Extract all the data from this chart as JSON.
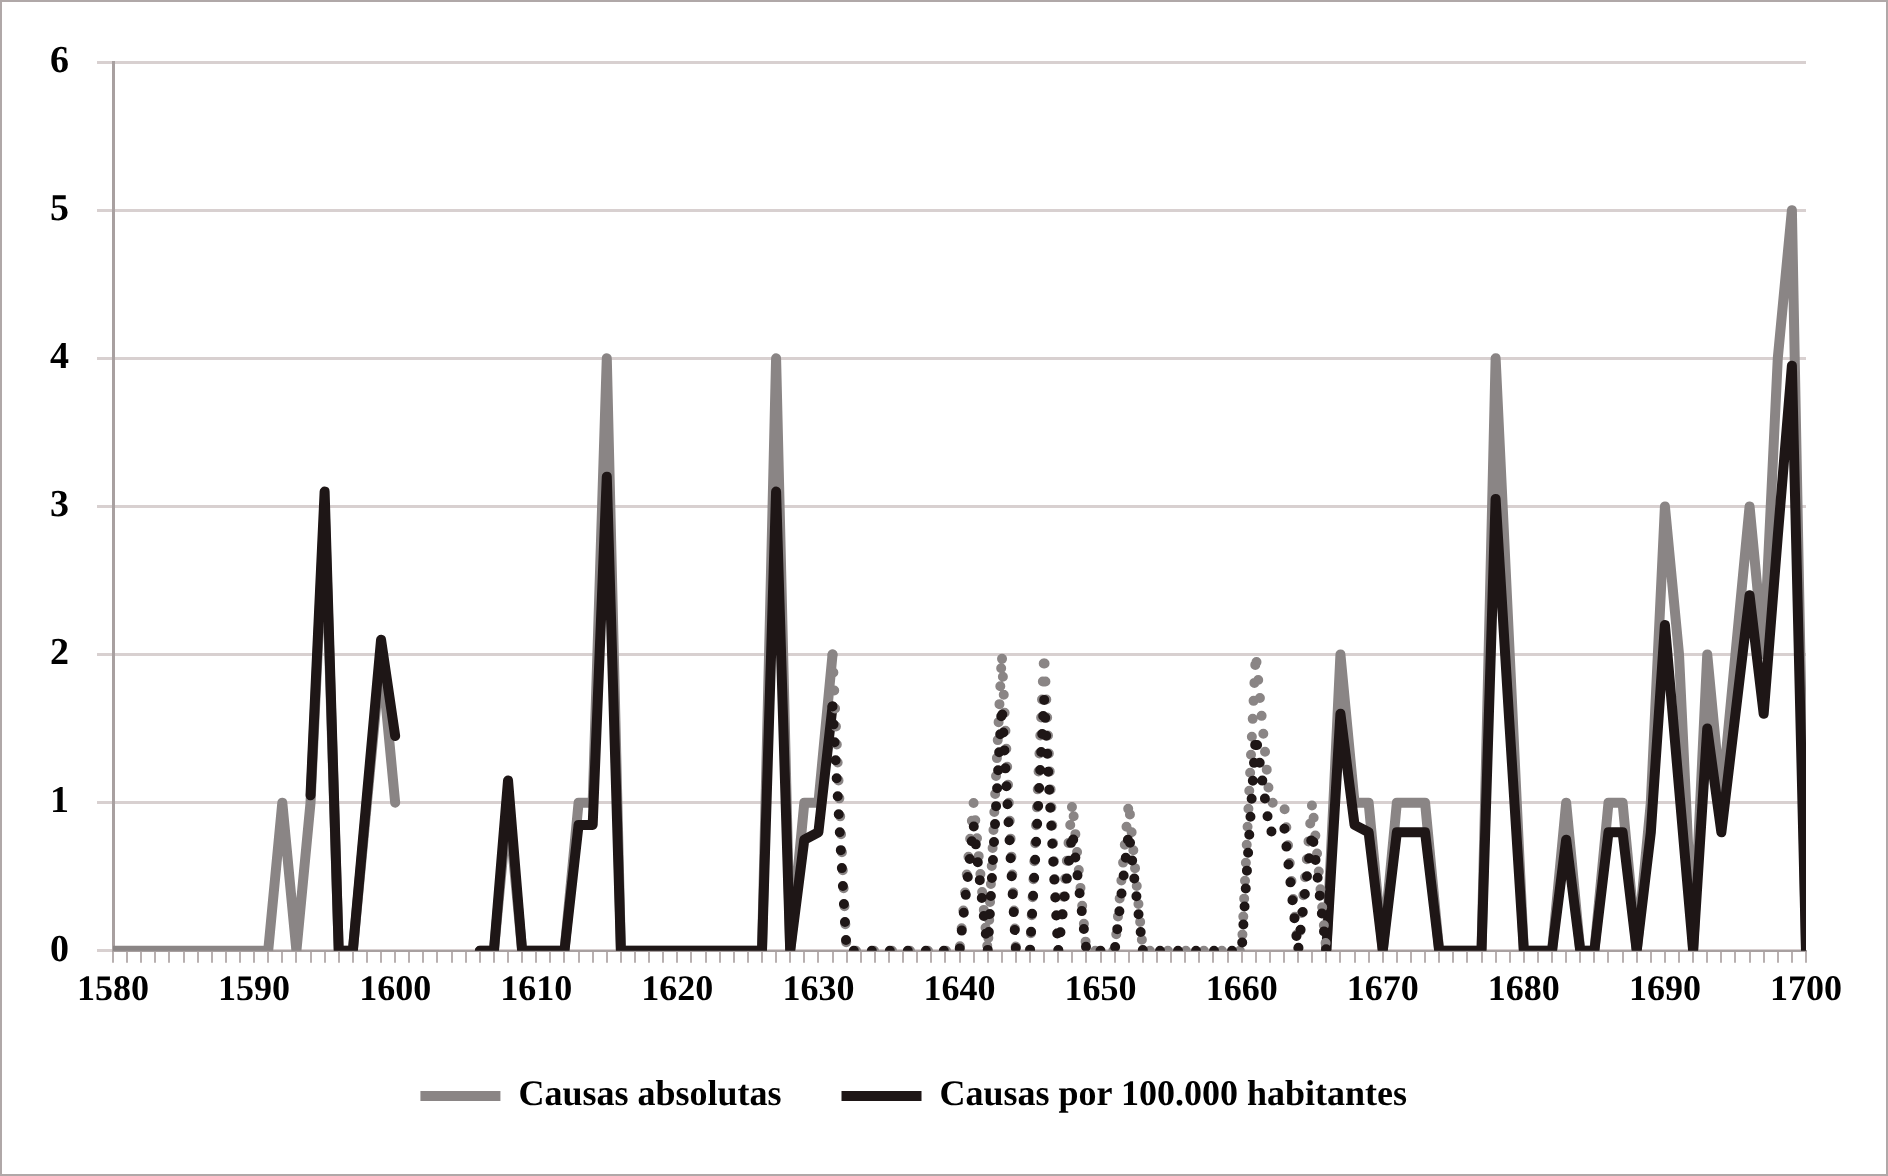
{
  "chart_data": {
    "type": "line",
    "series": [
      {
        "name": "Causas absolutas",
        "color": "#8a8585",
        "x": [
          1580,
          1581,
          1582,
          1583,
          1584,
          1585,
          1586,
          1587,
          1588,
          1589,
          1590,
          1591,
          1592,
          1593,
          1594,
          1595,
          1596,
          1597,
          1598,
          1599,
          1600,
          1601,
          1606,
          1607,
          1608,
          1609,
          1610,
          1611,
          1612,
          1613,
          1614,
          1615,
          1616,
          1617,
          1618,
          1619,
          1620,
          1621,
          1622,
          1623,
          1624,
          1625,
          1626,
          1627,
          1628,
          1629,
          1630,
          1631,
          1632,
          1666,
          1667,
          1668,
          1669,
          1670,
          1671,
          1672,
          1673,
          1674,
          1675,
          1676,
          1677,
          1678,
          1679,
          1680,
          1681,
          1682,
          1683,
          1684,
          1685,
          1686,
          1687,
          1688,
          1689,
          1690,
          1691,
          1692,
          1693,
          1694,
          1695,
          1696,
          1697,
          1698,
          1699,
          1700
        ],
        "values": [
          0,
          0,
          0,
          0,
          0,
          0,
          0,
          0,
          0,
          0,
          0,
          0,
          1,
          0,
          1,
          3,
          0,
          0,
          1,
          2,
          1,
          null,
          0,
          0,
          1,
          0,
          0,
          0,
          0,
          1,
          1,
          4,
          0,
          0,
          0,
          0,
          0,
          0,
          0,
          0,
          0,
          0,
          0,
          4,
          0,
          1,
          1,
          2,
          null,
          0,
          2,
          1,
          1,
          0,
          1,
          1,
          1,
          0,
          0,
          0,
          0,
          4,
          2,
          0,
          0,
          0,
          1,
          0,
          0,
          1,
          1,
          0,
          1,
          3,
          2,
          0,
          2,
          1,
          2,
          3,
          2,
          4,
          5,
          0
        ]
      },
      {
        "name": "Causas por 100.000 habitantes",
        "color": "#1e1616",
        "x": [
          1594,
          1595,
          1596,
          1597,
          1598,
          1599,
          1600,
          1601,
          1606,
          1607,
          1608,
          1609,
          1610,
          1611,
          1612,
          1613,
          1614,
          1615,
          1616,
          1617,
          1618,
          1619,
          1620,
          1621,
          1622,
          1623,
          1624,
          1625,
          1626,
          1627,
          1628,
          1629,
          1630,
          1631,
          1632,
          1666,
          1667,
          1668,
          1669,
          1670,
          1671,
          1672,
          1673,
          1674,
          1675,
          1676,
          1677,
          1678,
          1679,
          1680,
          1681,
          1682,
          1683,
          1684,
          1685,
          1686,
          1687,
          1688,
          1689,
          1690,
          1691,
          1692,
          1693,
          1694,
          1695,
          1696,
          1697,
          1698,
          1699,
          1700
        ],
        "values": [
          1.05,
          3.1,
          0,
          0,
          1.05,
          2.1,
          1.45,
          null,
          0,
          0,
          1.15,
          0,
          0,
          0,
          0,
          0.85,
          0.85,
          3.2,
          0,
          0,
          0,
          0,
          0,
          0,
          0,
          0,
          0,
          0,
          0,
          3.1,
          0,
          0.75,
          0.8,
          1.65,
          null,
          0,
          1.6,
          0.85,
          0.8,
          0,
          0.8,
          0.8,
          0.8,
          0,
          0,
          0,
          0,
          3.05,
          1.5,
          0,
          0,
          0,
          0.75,
          0,
          0,
          0.8,
          0.8,
          0,
          0.8,
          2.2,
          1.1,
          0,
          1.5,
          0.8,
          1.6,
          2.4,
          1.6,
          2.8,
          3.95,
          0
        ]
      },
      {
        "color": "#8a8585",
        "line_style": "dotted",
        "x": [
          1631,
          1632,
          1633,
          1634,
          1635,
          1636,
          1637,
          1638,
          1639,
          1640,
          1641,
          1642,
          1643,
          1644,
          1645,
          1646,
          1647,
          1648,
          1649,
          1650,
          1651,
          1652,
          1653,
          1654,
          1655,
          1656,
          1657,
          1658,
          1659,
          1660,
          1661,
          1662,
          1663,
          1664,
          1665,
          1666
        ],
        "values": [
          2,
          0,
          0,
          0,
          0,
          0,
          0,
          0,
          0,
          0,
          1,
          0,
          2,
          0,
          0,
          2,
          0,
          1,
          0,
          0,
          0,
          1,
          0,
          0,
          0,
          0,
          0,
          0,
          0,
          0,
          2,
          1,
          1,
          0,
          1,
          0
        ]
      },
      {
        "color": "#1e1616",
        "line_style": "dotted",
        "x": [
          1631,
          1632,
          1633,
          1634,
          1635,
          1636,
          1637,
          1638,
          1639,
          1640,
          1641,
          1642,
          1643,
          1644,
          1645,
          1646,
          1647,
          1648,
          1649,
          1650,
          1651,
          1652,
          1653,
          1654,
          1655,
          1656,
          1657,
          1658,
          1659,
          1660,
          1661,
          1662,
          1663,
          1664,
          1665,
          1666
        ],
        "values": [
          1.65,
          0,
          0,
          0,
          0,
          0,
          0,
          0,
          0,
          0,
          0.85,
          0,
          1.65,
          0,
          0,
          1.7,
          0,
          0.8,
          0,
          0,
          0,
          0.8,
          0,
          0,
          0,
          0,
          0,
          0,
          0,
          0,
          1.45,
          0.8,
          0.85,
          0,
          0.8,
          0
        ]
      }
    ],
    "xlim": [
      1580,
      1700
    ],
    "xticks": [
      1580,
      {
        "value": 1581,
        "label": null
      },
      {
        "value": 1582,
        "label": null
      },
      {
        "value": 1583,
        "label": null
      },
      {
        "value": 1584,
        "label": null
      },
      {
        "value": 1585,
        "label": null
      },
      {
        "value": 1586,
        "label": null
      },
      {
        "value": 1587,
        "label": null
      },
      {
        "value": 1588,
        "label": null
      },
      {
        "value": 1589,
        "label": null
      },
      1590,
      {
        "value": 1591,
        "label": null
      },
      {
        "value": 1592,
        "label": null
      },
      {
        "value": 1593,
        "label": null
      },
      {
        "value": 1594,
        "label": null
      },
      {
        "value": 1595,
        "label": null
      },
      {
        "value": 1596,
        "label": null
      },
      {
        "value": 1597,
        "label": null
      },
      {
        "value": 1598,
        "label": null
      },
      {
        "value": 1599,
        "label": null
      },
      1600,
      {
        "value": 1601,
        "label": null
      },
      {
        "value": 1602,
        "label": null
      },
      {
        "value": 1603,
        "label": null
      },
      {
        "value": 1604,
        "label": null
      },
      {
        "value": 1605,
        "label": null
      },
      {
        "value": 1606,
        "label": null
      },
      {
        "value": 1607,
        "label": null
      },
      {
        "value": 1608,
        "label": null
      },
      {
        "value": 1609,
        "label": null
      },
      1610,
      {
        "value": 1611,
        "label": null
      },
      {
        "value": 1612,
        "label": null
      },
      {
        "value": 1613,
        "label": null
      },
      {
        "value": 1614,
        "label": null
      },
      {
        "value": 1615,
        "label": null
      },
      {
        "value": 1616,
        "label": null
      },
      {
        "value": 1617,
        "label": null
      },
      {
        "value": 1618,
        "label": null
      },
      {
        "value": 1619,
        "label": null
      },
      1620,
      {
        "value": 1621,
        "label": null
      },
      {
        "value": 1622,
        "label": null
      },
      {
        "value": 1623,
        "label": null
      },
      {
        "value": 1624,
        "label": null
      },
      {
        "value": 1625,
        "label": null
      },
      {
        "value": 1626,
        "label": null
      },
      {
        "value": 1627,
        "label": null
      },
      {
        "value": 1628,
        "label": null
      },
      {
        "value": 1629,
        "label": null
      },
      1630,
      {
        "value": 1631,
        "label": null
      },
      {
        "value": 1632,
        "label": null
      },
      {
        "value": 1633,
        "label": null
      },
      {
        "value": 1634,
        "label": null
      },
      {
        "value": 1635,
        "label": null
      },
      {
        "value": 1636,
        "label": null
      },
      {
        "value": 1637,
        "label": null
      },
      {
        "value": 1638,
        "label": null
      },
      {
        "value": 1639,
        "label": null
      },
      1640,
      {
        "value": 1641,
        "label": null
      },
      {
        "value": 1642,
        "label": null
      },
      {
        "value": 1643,
        "label": null
      },
      {
        "value": 1644,
        "label": null
      },
      {
        "value": 1645,
        "label": null
      },
      {
        "value": 1646,
        "label": null
      },
      {
        "value": 1647,
        "label": null
      },
      {
        "value": 1648,
        "label": null
      },
      {
        "value": 1649,
        "label": null
      },
      1650,
      {
        "value": 1651,
        "label": null
      },
      {
        "value": 1652,
        "label": null
      },
      {
        "value": 1653,
        "label": null
      },
      {
        "value": 1654,
        "label": null
      },
      {
        "value": 1655,
        "label": null
      },
      {
        "value": 1656,
        "label": null
      },
      {
        "value": 1657,
        "label": null
      },
      {
        "value": 1658,
        "label": null
      },
      {
        "value": 1659,
        "label": null
      },
      1660,
      {
        "value": 1661,
        "label": null
      },
      {
        "value": 1662,
        "label": null
      },
      {
        "value": 1663,
        "label": null
      },
      {
        "value": 1664,
        "label": null
      },
      {
        "value": 1665,
        "label": null
      },
      {
        "value": 1666,
        "label": null
      },
      {
        "value": 1667,
        "label": null
      },
      {
        "value": 1668,
        "label": null
      },
      {
        "value": 1669,
        "label": null
      },
      1670,
      {
        "value": 1671,
        "label": null
      },
      {
        "value": 1672,
        "label": null
      },
      {
        "value": 1673,
        "label": null
      },
      {
        "value": 1674,
        "label": null
      },
      {
        "value": 1675,
        "label": null
      },
      {
        "value": 1676,
        "label": null
      },
      {
        "value": 1677,
        "label": null
      },
      {
        "value": 1678,
        "label": null
      },
      {
        "value": 1679,
        "label": null
      },
      1680,
      {
        "value": 1681,
        "label": null
      },
      {
        "value": 1682,
        "label": null
      },
      {
        "value": 1683,
        "label": null
      },
      {
        "value": 1684,
        "label": null
      },
      {
        "value": 1685,
        "label": null
      },
      {
        "value": 1686,
        "label": null
      },
      {
        "value": 1687,
        "label": null
      },
      {
        "value": 1688,
        "label": null
      },
      {
        "value": 1689,
        "label": null
      },
      1690,
      {
        "value": 1691,
        "label": null
      },
      {
        "value": 1692,
        "label": null
      },
      {
        "value": 1693,
        "label": null
      },
      {
        "value": 1694,
        "label": null
      },
      {
        "value": 1695,
        "label": null
      },
      {
        "value": 1696,
        "label": null
      },
      {
        "value": 1697,
        "label": null
      },
      {
        "value": 1698,
        "label": null
      },
      {
        "value": 1699,
        "label": null
      },
      1700
    ],
    "ylim": [
      0,
      6
    ],
    "yticks": [
      0,
      1,
      2,
      3,
      4,
      5,
      6
    ],
    "grid": "y",
    "legend": "bottom",
    "marker": "none",
    "line_style": "solid"
  }
}
